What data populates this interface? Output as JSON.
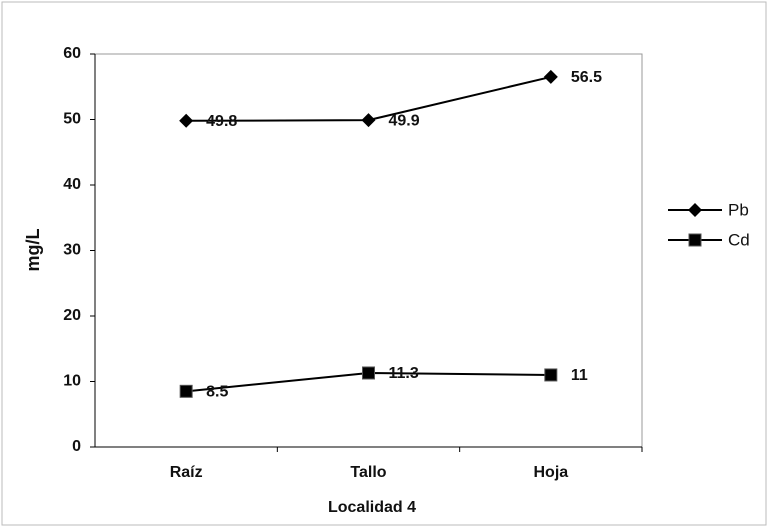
{
  "chart_data": {
    "type": "line",
    "x_label": "Localidad 4",
    "y_label": "mg/L",
    "categories": [
      "Raíz",
      "Tallo",
      "Hoja"
    ],
    "series": [
      {
        "name": "Pb",
        "color": "#000000",
        "marker": "diamond",
        "values": [
          49.8,
          49.9,
          56.5
        ]
      },
      {
        "name": "Cd",
        "color": "#000000",
        "marker": "square",
        "values": [
          8.5,
          11.3,
          11
        ]
      }
    ],
    "ylim": [
      0,
      60
    ],
    "yticks": [
      0,
      10,
      20,
      30,
      40,
      50,
      60
    ],
    "grid": false,
    "legend": "right",
    "data_labels": true
  }
}
